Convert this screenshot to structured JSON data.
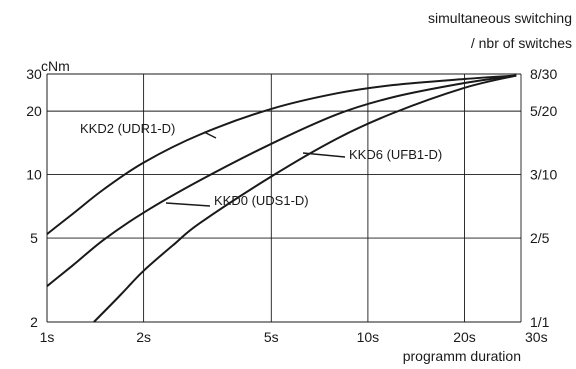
{
  "chart_data": {
    "type": "line",
    "x_scale": "log",
    "y_scale": "log",
    "grid": true,
    "y_unit": "cNm",
    "x_axis_label": "programm duration",
    "x_ticks": [
      {
        "value": 1,
        "label": "1s"
      },
      {
        "value": 2,
        "label": "2s"
      },
      {
        "value": 5,
        "label": "5s"
      },
      {
        "value": 10,
        "label": "10s"
      },
      {
        "value": 20,
        "label": "20s"
      },
      {
        "value": 30,
        "label": "30s"
      }
    ],
    "y_ticks_left": [
      {
        "value": 2,
        "label": "2"
      },
      {
        "value": 5,
        "label": "5"
      },
      {
        "value": 10,
        "label": "10"
      },
      {
        "value": 20,
        "label": "20"
      },
      {
        "value": 30,
        "label": "30"
      }
    ],
    "right_axis_label": [
      "simultaneous switching",
      "/ nbr of switches"
    ],
    "y_ticks_right": [
      {
        "value": 2,
        "label": "1/1"
      },
      {
        "value": 5,
        "label": "2/5"
      },
      {
        "value": 10,
        "label": "3/10"
      },
      {
        "value": 20,
        "label": "5/20"
      },
      {
        "value": 30,
        "label": "8/30"
      }
    ],
    "series": [
      {
        "name": "KKD2 (UDR1-D)",
        "points": [
          [
            0.9,
            4.6
          ],
          [
            1.2,
            6.5
          ],
          [
            1.5,
            8.5
          ],
          [
            2.0,
            11.4
          ],
          [
            3.0,
            15.5
          ],
          [
            5.0,
            20.5
          ],
          [
            8.0,
            24.3
          ],
          [
            12.0,
            26.6
          ],
          [
            20.0,
            28.4
          ],
          [
            29.0,
            29.5
          ]
        ]
      },
      {
        "name": "KKD0 (UDS1-D)",
        "points": [
          [
            0.9,
            2.6
          ],
          [
            1.2,
            3.7
          ],
          [
            1.5,
            4.9
          ],
          [
            2.0,
            6.6
          ],
          [
            3.0,
            9.4
          ],
          [
            5.0,
            14.0
          ],
          [
            8.0,
            19.3
          ],
          [
            12.0,
            23.3
          ],
          [
            20.0,
            27.2
          ],
          [
            29.0,
            29.5
          ]
        ]
      },
      {
        "name": "KKD6 (UFB1-D)",
        "points": [
          [
            1.4,
            2.0
          ],
          [
            1.7,
            2.7
          ],
          [
            2.0,
            3.5
          ],
          [
            2.5,
            4.7
          ],
          [
            3.0,
            5.9
          ],
          [
            5.0,
            9.8
          ],
          [
            8.0,
            14.8
          ],
          [
            12.0,
            19.6
          ],
          [
            20.0,
            25.8
          ],
          [
            29.0,
            29.5
          ]
        ]
      }
    ]
  }
}
